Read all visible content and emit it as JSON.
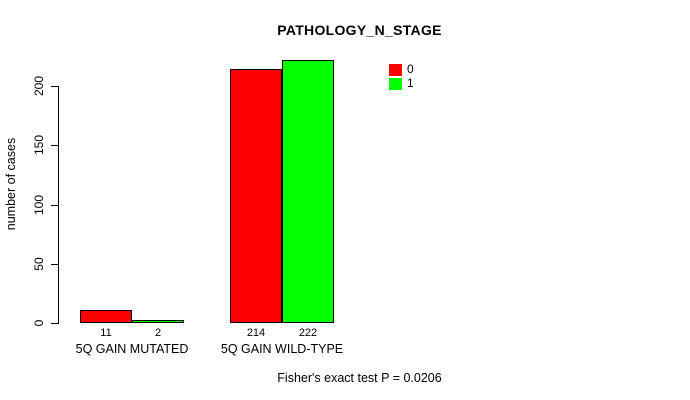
{
  "chart_data": {
    "type": "bar",
    "title": "PATHOLOGY_N_STAGE",
    "ylabel": "number of cases",
    "categories": [
      "5Q GAIN MUTATED",
      "5Q GAIN WILD-TYPE"
    ],
    "series": [
      {
        "name": "0",
        "color": "#ff0000",
        "values": [
          11,
          214
        ]
      },
      {
        "name": "1",
        "color": "#00ff00",
        "values": [
          2,
          222
        ]
      }
    ],
    "yticks": [
      0,
      50,
      100,
      150,
      200
    ],
    "ylim": [
      0,
      200
    ],
    "grid": false,
    "legend_position": "top-right",
    "bar_value_labels": true,
    "annotation": "Fisher's exact test P = 0.0206"
  }
}
